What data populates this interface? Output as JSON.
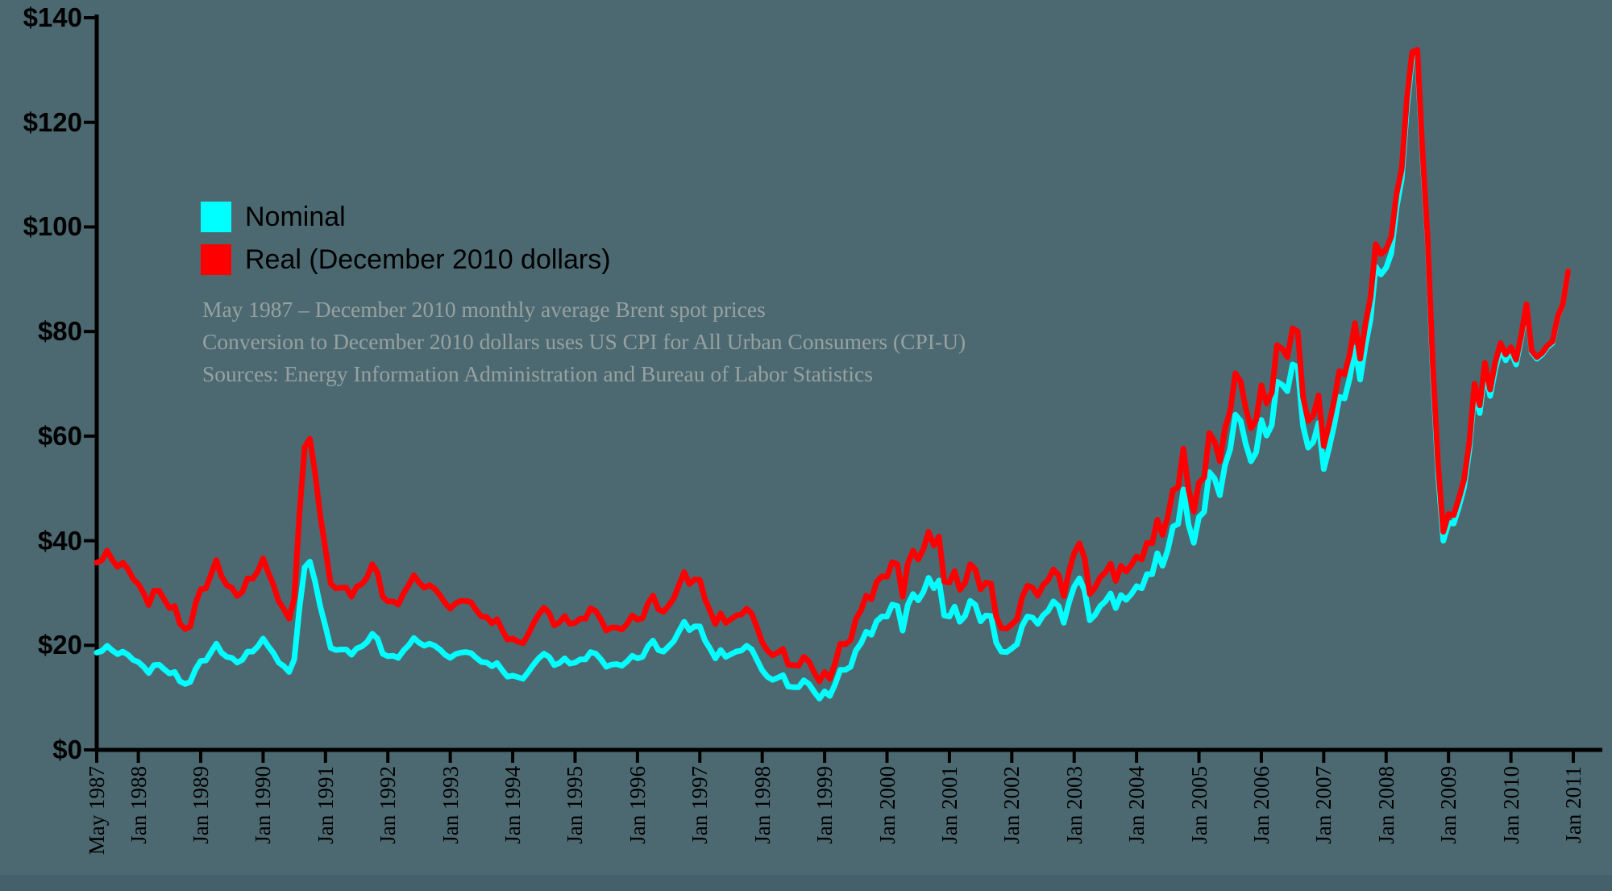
{
  "background": {
    "canvas_color": "#4c6971",
    "bottom_strip_color": "#44606b",
    "axis_color": "#000000"
  },
  "legend": {
    "items": [
      {
        "label": "Nominal",
        "color": "#00ffff"
      },
      {
        "label": "Real (December 2010 dollars)",
        "color": "#ff0000"
      }
    ]
  },
  "notes": [
    "May 1987 – December 2010 monthly average Brent spot prices",
    "Conversion to December 2010 dollars uses US CPI for All Urban Consumers (CPI-U)",
    "Sources: Energy Information Administration and Bureau of Labor Statistics"
  ],
  "chart_data": {
    "type": "line",
    "title": "",
    "xlabel": "",
    "ylabel": "",
    "x_start": "1987-05",
    "x_end": "2010-12",
    "frequency": "monthly",
    "ylim": [
      0,
      140
    ],
    "grid": false,
    "legend_position": "upper-left-inside",
    "y_ticks": [
      "$0",
      "$20",
      "$40",
      "$60",
      "$80",
      "$100",
      "$120",
      "$140"
    ],
    "y_tick_values": [
      0,
      20,
      40,
      60,
      80,
      100,
      120,
      140
    ],
    "x_tick_labels": [
      "May 1987",
      "Jan 1988",
      "Jan 1989",
      "Jan 1990",
      "Jan 1991",
      "Jan 1992",
      "Jan 1993",
      "Jan 1994",
      "Jan 1995",
      "Jan 1996",
      "Jan 1997",
      "Jan 1998",
      "Jan 1999",
      "Jan 2000",
      "Jan 2001",
      "Jan 2002",
      "Jan 2003",
      "Jan 2004",
      "Jan 2005",
      "Jan 2006",
      "Jan 2007",
      "Jan 2008",
      "Jan 2009",
      "Jan 2010",
      "Jan 2011"
    ],
    "series": [
      {
        "name": "Nominal",
        "color": "#00ffff",
        "values": [
          18.6,
          18.9,
          19.9,
          19.0,
          18.3,
          18.8,
          18.2,
          17.2,
          16.8,
          15.9,
          14.7,
          16.2,
          16.3,
          15.4,
          14.6,
          14.9,
          13.1,
          12.6,
          13.0,
          15.4,
          17.0,
          17.1,
          18.7,
          20.3,
          18.6,
          17.8,
          17.6,
          16.7,
          17.2,
          18.8,
          18.8,
          19.8,
          21.3,
          19.8,
          18.5,
          16.7,
          16.0,
          14.9,
          17.3,
          27.2,
          34.9,
          36.0,
          32.2,
          27.4,
          23.6,
          19.5,
          19.1,
          19.2,
          19.2,
          18.2,
          19.4,
          19.8,
          20.6,
          22.2,
          21.3,
          18.4,
          17.9,
          18.0,
          17.6,
          19.0,
          20.0,
          21.4,
          20.5,
          19.9,
          20.3,
          19.9,
          19.2,
          18.2,
          17.6,
          18.3,
          18.6,
          18.7,
          18.5,
          17.6,
          16.8,
          16.7,
          16.0,
          16.6,
          15.2,
          14.0,
          14.2,
          13.9,
          13.6,
          14.9,
          16.3,
          17.5,
          18.4,
          17.8,
          16.2,
          16.6,
          17.5,
          16.5,
          16.7,
          17.3,
          17.3,
          18.7,
          18.4,
          17.3,
          15.9,
          16.3,
          16.4,
          16.1,
          16.9,
          18.0,
          17.5,
          17.8,
          19.8,
          20.9,
          19.1,
          18.8,
          19.8,
          20.8,
          22.7,
          24.5,
          22.9,
          23.6,
          23.6,
          20.9,
          19.3,
          17.5,
          19.1,
          17.8,
          18.3,
          18.8,
          19.0,
          19.9,
          19.2,
          17.2,
          15.2,
          14.0,
          13.4,
          13.8,
          14.3,
          12.1,
          12.0,
          12.0,
          13.3,
          12.6,
          11.1,
          9.8,
          11.2,
          10.3,
          12.5,
          15.3,
          15.3,
          15.9,
          19.0,
          20.4,
          22.6,
          22.0,
          24.6,
          25.5,
          25.5,
          27.8,
          27.5,
          22.8,
          27.7,
          29.8,
          28.6,
          30.2,
          32.9,
          30.9,
          32.4,
          25.7,
          25.5,
          27.4,
          24.5,
          25.6,
          28.5,
          27.7,
          24.6,
          25.7,
          25.6,
          20.5,
          18.8,
          18.7,
          19.4,
          20.2,
          23.7,
          25.5,
          25.3,
          24.1,
          25.7,
          26.6,
          28.4,
          27.5,
          24.3,
          28.2,
          31.2,
          32.8,
          30.5,
          24.8,
          25.8,
          27.5,
          28.4,
          29.9,
          27.1,
          29.6,
          28.7,
          29.8,
          31.3,
          30.9,
          33.6,
          33.6,
          37.6,
          35.2,
          38.2,
          42.7,
          43.2,
          49.8,
          43.1,
          39.6,
          44.5,
          45.5,
          53.1,
          51.9,
          48.7,
          54.4,
          57.5,
          64.1,
          62.9,
          58.5,
          55.2,
          56.9,
          63.1,
          60.1,
          62.1,
          70.4,
          69.8,
          68.6,
          73.7,
          73.2,
          62.0,
          57.8,
          58.9,
          62.5,
          53.7,
          57.6,
          62.1,
          67.5,
          67.2,
          71.1,
          76.9,
          70.8,
          77.2,
          82.3,
          92.4,
          90.9,
          92.2,
          95.0,
          103.7,
          109.1,
          122.8,
          132.3,
          132.7,
          113.2,
          97.2,
          71.6,
          52.5,
          40.0,
          43.4,
          43.3,
          46.5,
          50.2,
          57.3,
          68.6,
          64.4,
          72.5,
          67.7,
          72.8,
          76.7,
          74.5,
          76.2,
          73.7,
          78.8,
          84.8,
          76.0,
          74.8,
          75.6,
          77.0,
          77.8,
          82.7,
          85.3,
          91.5
        ]
      },
      {
        "name": "Real (December 2010 dollars)",
        "color": "#ff0000",
        "values": [
          35.8,
          36.3,
          38.1,
          36.3,
          35.0,
          35.8,
          34.6,
          32.7,
          31.7,
          30.0,
          27.7,
          30.4,
          30.4,
          28.7,
          27.1,
          27.5,
          24.1,
          23.1,
          23.6,
          28.0,
          30.7,
          30.9,
          33.6,
          36.3,
          33.2,
          31.5,
          31.0,
          29.4,
          30.2,
          32.8,
          32.7,
          34.2,
          36.6,
          33.9,
          31.5,
          28.4,
          26.9,
          25.1,
          29.0,
          45.3,
          57.9,
          59.5,
          52.9,
          44.7,
          38.4,
          31.8,
          30.9,
          31.0,
          31.0,
          29.3,
          31.2,
          31.7,
          33.0,
          35.5,
          33.9,
          29.3,
          28.4,
          28.4,
          27.8,
          29.9,
          31.5,
          33.4,
          32.0,
          31.0,
          31.5,
          30.8,
          29.6,
          28.1,
          27.0,
          28.0,
          28.5,
          28.5,
          28.2,
          26.7,
          25.5,
          25.4,
          24.2,
          25.0,
          22.9,
          21.1,
          21.3,
          20.7,
          20.4,
          22.1,
          24.2,
          25.9,
          27.2,
          26.2,
          23.8,
          24.4,
          25.6,
          24.1,
          24.3,
          25.1,
          25.1,
          27.1,
          26.5,
          24.9,
          22.8,
          23.4,
          23.4,
          23.0,
          24.1,
          25.7,
          24.9,
          25.2,
          28.0,
          29.5,
          26.9,
          26.4,
          27.6,
          29.0,
          31.6,
          34.0,
          31.7,
          32.6,
          32.5,
          28.8,
          26.5,
          24.1,
          26.1,
          24.3,
          25.0,
          25.7,
          25.9,
          27.0,
          26.0,
          23.4,
          20.6,
          19.0,
          18.1,
          18.6,
          19.3,
          16.3,
          16.2,
          16.1,
          17.8,
          16.9,
          14.8,
          13.1,
          14.9,
          13.6,
          16.5,
          20.3,
          20.2,
          21.0,
          25.0,
          26.7,
          29.5,
          28.8,
          32.1,
          33.2,
          33.1,
          35.9,
          35.5,
          29.3,
          35.6,
          38.1,
          36.4,
          38.4,
          41.7,
          39.1,
          40.8,
          32.2,
          32.0,
          34.2,
          30.6,
          31.9,
          35.5,
          34.5,
          30.7,
          32.0,
          31.8,
          25.5,
          23.3,
          23.2,
          24.0,
          25.0,
          29.2,
          31.4,
          31.0,
          29.5,
          31.5,
          32.5,
          34.5,
          33.4,
          29.4,
          34.1,
          37.6,
          39.5,
          36.7,
          29.8,
          31.0,
          33.0,
          33.9,
          35.6,
          32.3,
          35.2,
          34.1,
          35.4,
          37.0,
          36.4,
          39.6,
          39.5,
          44.0,
          41.1,
          44.6,
          49.7,
          50.2,
          57.6,
          49.8,
          45.6,
          51.1,
          52.1,
          60.6,
          59.0,
          55.2,
          61.5,
          64.8,
          72.0,
          70.5,
          65.3,
          61.5,
          63.1,
          69.7,
          66.3,
          68.3,
          77.4,
          76.7,
          75.1,
          80.6,
          80.0,
          67.6,
          62.9,
          64.0,
          67.8,
          58.1,
          62.1,
          66.8,
          72.4,
          71.8,
          75.7,
          81.6,
          74.8,
          81.3,
          86.5,
          96.7,
          94.8,
          95.7,
          98.2,
          106.3,
          111.1,
          124.5,
          133.4,
          133.9,
          114.2,
          97.6,
          73.1,
          54.4,
          41.7,
          45.1,
          44.9,
          48.1,
          51.7,
          58.8,
          70.0,
          65.9,
          74.0,
          68.9,
          74.1,
          77.8,
          75.6,
          77.0,
          74.6,
          79.4,
          85.2,
          76.3,
          75.1,
          75.9,
          77.3,
          78.1,
          82.8,
          85.3,
          91.5
        ]
      }
    ]
  }
}
